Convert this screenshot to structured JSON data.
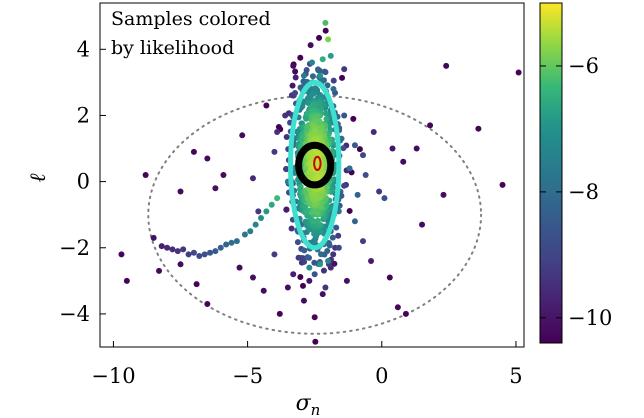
{
  "chart_data": {
    "type": "scatter",
    "title": "",
    "annotation_lines": [
      "Samples colored",
      "by likelihood"
    ],
    "xlabel": "σ_n",
    "ylabel": "ℓ",
    "xlim": [
      -10.5,
      5.3
    ],
    "ylim": [
      -5.0,
      5.4
    ],
    "xticks": [
      -10,
      -5,
      0,
      5
    ],
    "yticks": [
      -4,
      -2,
      0,
      2,
      4
    ],
    "xtick_labels": [
      "−10",
      "−5",
      "0",
      "5"
    ],
    "ytick_labels": [
      "−4",
      "−2",
      "0",
      "2",
      "4"
    ],
    "colorbar": {
      "colormap": "viridis",
      "range": [
        -10.4,
        -5.0
      ],
      "ticks": [
        -10,
        -8,
        -6
      ],
      "tick_labels": [
        "−10",
        "−8",
        "−6"
      ]
    },
    "grid": false,
    "ellipses": [
      {
        "role": "dotted-wide",
        "color": "#808080",
        "cx": -2.5,
        "cy": -1.0,
        "rx": 6.2,
        "ry": 3.6
      },
      {
        "role": "cyan",
        "color": "#40e0d0",
        "cx": -2.5,
        "cy": 0.5,
        "rx": 0.9,
        "ry": 2.5
      },
      {
        "role": "black",
        "color": "#000000",
        "cx": -2.5,
        "cy": 0.5,
        "rx": 0.6,
        "ry": 0.6
      },
      {
        "role": "red",
        "color": "#cc0000",
        "cx": -2.4,
        "cy": 0.55,
        "rx": 0.12,
        "ry": 0.2
      }
    ],
    "points": [
      {
        "x": -9.7,
        "y": -2.2,
        "v": -10.3
      },
      {
        "x": -9.5,
        "y": -3.0,
        "v": -10.3
      },
      {
        "x": -8.5,
        "y": -1.7,
        "v": -10.1
      },
      {
        "x": -8.3,
        "y": -2.7,
        "v": -10.2
      },
      {
        "x": -8.2,
        "y": -1.95,
        "v": -9.8
      },
      {
        "x": -8.0,
        "y": -2.0,
        "v": -9.6
      },
      {
        "x": -7.8,
        "y": -2.05,
        "v": -9.5
      },
      {
        "x": -7.6,
        "y": -2.1,
        "v": -9.4
      },
      {
        "x": -7.5,
        "y": -2.5,
        "v": -10.2
      },
      {
        "x": -7.4,
        "y": -2.05,
        "v": -9.3
      },
      {
        "x": -7.2,
        "y": -2.2,
        "v": -9.2
      },
      {
        "x": -7.0,
        "y": -2.15,
        "v": -9.0
      },
      {
        "x": -6.9,
        "y": -3.1,
        "v": -10.3
      },
      {
        "x": -6.8,
        "y": -2.25,
        "v": -8.9
      },
      {
        "x": -6.6,
        "y": -2.2,
        "v": -8.8
      },
      {
        "x": -6.4,
        "y": -2.15,
        "v": -8.6
      },
      {
        "x": -6.2,
        "y": -2.1,
        "v": -8.5
      },
      {
        "x": -6.5,
        "y": -3.7,
        "v": -10.3
      },
      {
        "x": -6.0,
        "y": -2.0,
        "v": -8.3
      },
      {
        "x": -5.8,
        "y": -1.9,
        "v": -8.2
      },
      {
        "x": -5.6,
        "y": -1.85,
        "v": -8.0
      },
      {
        "x": -5.4,
        "y": -1.8,
        "v": -7.9
      },
      {
        "x": -5.3,
        "y": -2.6,
        "v": -10.2
      },
      {
        "x": -5.1,
        "y": -1.6,
        "v": -7.7
      },
      {
        "x": -4.9,
        "y": -1.5,
        "v": -7.5
      },
      {
        "x": -4.7,
        "y": -1.3,
        "v": -7.3
      },
      {
        "x": -4.5,
        "y": -1.1,
        "v": -7.1
      },
      {
        "x": -4.3,
        "y": -0.9,
        "v": -6.9
      },
      {
        "x": -4.1,
        "y": -0.7,
        "v": -6.6
      },
      {
        "x": -3.9,
        "y": -0.5,
        "v": -6.3
      },
      {
        "x": -4.8,
        "y": -2.9,
        "v": -10.1
      },
      {
        "x": -4.4,
        "y": -3.3,
        "v": -10.2
      },
      {
        "x": -4.0,
        "y": -2.2,
        "v": -9.2
      },
      {
        "x": -3.8,
        "y": -4.0,
        "v": -10.3
      },
      {
        "x": -3.5,
        "y": -3.2,
        "v": -10.1
      },
      {
        "x": -3.3,
        "y": -2.8,
        "v": -9.8
      },
      {
        "x": -3.1,
        "y": -2.3,
        "v": -9.3
      },
      {
        "x": -2.9,
        "y": -3.6,
        "v": -10.2
      },
      {
        "x": -2.7,
        "y": -3.0,
        "v": -10.0
      },
      {
        "x": -2.5,
        "y": -4.1,
        "v": -10.3
      },
      {
        "x": -2.2,
        "y": -3.4,
        "v": -10.1
      },
      {
        "x": -1.9,
        "y": -2.6,
        "v": -9.6
      },
      {
        "x": -1.6,
        "y": -2.0,
        "v": -9.0
      },
      {
        "x": -1.3,
        "y": -3.0,
        "v": -10.1
      },
      {
        "x": -1.0,
        "y": -1.2,
        "v": -8.2
      },
      {
        "x": -0.7,
        "y": -1.8,
        "v": -9.2
      },
      {
        "x": -0.4,
        "y": -2.4,
        "v": -9.9
      },
      {
        "x": 0.1,
        "y": -0.5,
        "v": -8.7
      },
      {
        "x": 0.3,
        "y": -2.9,
        "v": -10.3
      },
      {
        "x": 0.6,
        "y": -3.8,
        "v": -10.3
      },
      {
        "x": 0.9,
        "y": -4.0,
        "v": -10.3
      },
      {
        "x": -8.8,
        "y": 0.2,
        "v": -10.3
      },
      {
        "x": -7.5,
        "y": -0.3,
        "v": -10.2
      },
      {
        "x": -7.0,
        "y": 0.9,
        "v": -10.3
      },
      {
        "x": -6.5,
        "y": 0.7,
        "v": -10.2
      },
      {
        "x": -6.2,
        "y": -0.2,
        "v": -10.1
      },
      {
        "x": -5.9,
        "y": 0.2,
        "v": -10.2
      },
      {
        "x": -5.2,
        "y": 1.4,
        "v": -10.2
      },
      {
        "x": -4.8,
        "y": 0.1,
        "v": -9.6
      },
      {
        "x": -4.6,
        "y": -0.9,
        "v": -9.3
      },
      {
        "x": -4.3,
        "y": 2.3,
        "v": -10.3
      },
      {
        "x": -4.0,
        "y": 0.9,
        "v": -9.3
      },
      {
        "x": -3.9,
        "y": 1.5,
        "v": -9.5
      },
      {
        "x": -3.6,
        "y": 2.0,
        "v": -9.4
      },
      {
        "x": -3.3,
        "y": 1.1,
        "v": -8.1
      },
      {
        "x": -3.3,
        "y": 3.5,
        "v": -10.2
      },
      {
        "x": -3.5,
        "y": 0.0,
        "v": -7.5
      },
      {
        "x": -3.2,
        "y": -0.6,
        "v": -7.6
      },
      {
        "x": -3.0,
        "y": -1.3,
        "v": -8.0
      },
      {
        "x": -1.9,
        "y": -1.5,
        "v": -8.2
      },
      {
        "x": -1.6,
        "y": -0.9,
        "v": -7.6
      },
      {
        "x": -1.5,
        "y": 1.3,
        "v": -7.9
      },
      {
        "x": -1.4,
        "y": 2.0,
        "v": -8.6
      },
      {
        "x": -1.2,
        "y": 0.4,
        "v": -7.9
      },
      {
        "x": -1.0,
        "y": 1.1,
        "v": -8.5
      },
      {
        "x": -0.9,
        "y": -0.4,
        "v": -8.3
      },
      {
        "x": -0.7,
        "y": 0.8,
        "v": -9.0
      },
      {
        "x": -0.6,
        "y": 0.2,
        "v": -8.8
      },
      {
        "x": -0.3,
        "y": 1.5,
        "v": -9.6
      },
      {
        "x": -0.1,
        "y": -0.3,
        "v": -9.3
      },
      {
        "x": 0.4,
        "y": 1.0,
        "v": -10.0
      },
      {
        "x": 0.8,
        "y": 0.6,
        "v": -10.2
      },
      {
        "x": 1.3,
        "y": 1.0,
        "v": -10.2
      },
      {
        "x": 1.5,
        "y": -1.3,
        "v": -10.2
      },
      {
        "x": 1.8,
        "y": 1.7,
        "v": -10.3
      },
      {
        "x": 2.3,
        "y": -0.4,
        "v": -10.2
      },
      {
        "x": 2.4,
        "y": 3.5,
        "v": -10.3
      },
      {
        "x": 3.6,
        "y": 1.6,
        "v": -10.3
      },
      {
        "x": 4.5,
        "y": -0.1,
        "v": -10.3
      },
      {
        "x": 5.1,
        "y": 3.3,
        "v": -10.3
      },
      {
        "x": -1.4,
        "y": 3.4,
        "v": -9.3
      },
      {
        "x": -1.8,
        "y": 2.8,
        "v": -8.0
      },
      {
        "x": -2.1,
        "y": 4.8,
        "v": -6.2
      },
      {
        "x": -2.0,
        "y": 4.3,
        "v": -5.8
      },
      {
        "x": -2.2,
        "y": 3.7,
        "v": -6.5
      },
      {
        "x": -1.9,
        "y": 3.8,
        "v": -6.8
      },
      {
        "x": -2.6,
        "y": 3.6,
        "v": -7.3
      },
      {
        "x": -2.3,
        "y": 3.2,
        "v": -7.0
      },
      {
        "x": -2.9,
        "y": 3.2,
        "v": -7.6
      },
      {
        "x": -2.7,
        "y": -2.6,
        "v": -7.1
      },
      {
        "x": -2.3,
        "y": -2.5,
        "v": -6.9
      },
      {
        "x": -2.0,
        "y": -2.4,
        "v": -7.4
      },
      {
        "x": -2.5,
        "y": -2.8,
        "v": -8.6
      },
      {
        "x": -2.1,
        "y": -3.2,
        "v": -9.4
      }
    ],
    "dense_cluster": {
      "cx": -2.45,
      "cy": 0.5,
      "sx": 0.42,
      "sy": 1.25,
      "count": 900,
      "seed": 7
    }
  }
}
